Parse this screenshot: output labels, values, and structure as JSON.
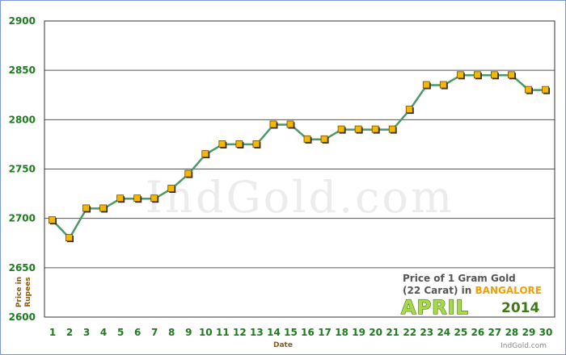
{
  "chart_data": {
    "type": "line",
    "watermark": "IndGold.com",
    "caption": {
      "line1": "Price of 1 Gram Gold",
      "line2_prefix": "(22 Carat) in ",
      "city": "BANGALORE",
      "month": "APRIL",
      "year": "2014",
      "site": "IndGold.com"
    },
    "xlabel": "Date",
    "ylabel_line1": "Price in",
    "ylabel_line2": "Rupees",
    "ylim": [
      2600,
      2900
    ],
    "yticks": [
      2600,
      2650,
      2700,
      2750,
      2800,
      2850,
      2900
    ],
    "grid": true,
    "line_color": "#4a9a68",
    "marker_color": "#f5b800",
    "x": [
      1,
      2,
      3,
      4,
      5,
      6,
      7,
      8,
      9,
      10,
      11,
      12,
      13,
      14,
      15,
      16,
      17,
      18,
      19,
      20,
      21,
      22,
      23,
      24,
      25,
      26,
      27,
      28,
      29,
      30
    ],
    "values": [
      2698,
      2680,
      2710,
      2710,
      2720,
      2720,
      2720,
      2730,
      2745,
      2765,
      2775,
      2775,
      2775,
      2795,
      2795,
      2780,
      2780,
      2790,
      2790,
      2790,
      2790,
      2810,
      2835,
      2835,
      2845,
      2845,
      2845,
      2845,
      2830,
      2830
    ]
  }
}
